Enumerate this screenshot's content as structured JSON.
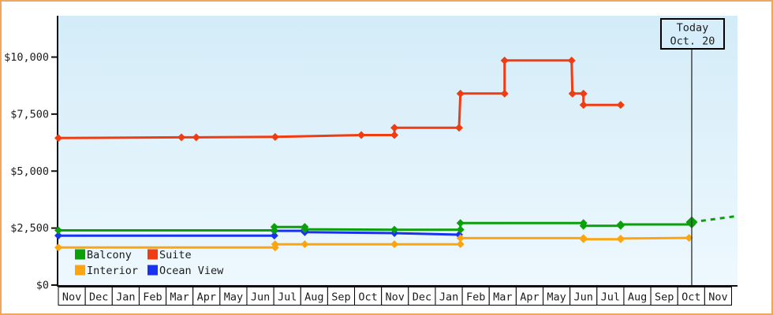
{
  "window": {
    "background": "#ffffff",
    "frame_color": "#eda75f"
  },
  "chart_data": {
    "type": "line",
    "title": "",
    "xlabel": "",
    "ylabel": "",
    "grid": false,
    "legend_position": "bottom-left-inside",
    "axis_ranges": {
      "y_usd": [
        0,
        10500
      ],
      "x_months": 25.2
    },
    "y_axis": {
      "ticks": [
        {
          "label": "$0",
          "value": 0
        },
        {
          "label": "$2,500",
          "value": 2500
        },
        {
          "label": "$5,000",
          "value": 5000
        },
        {
          "label": "$7,500",
          "value": 7500
        },
        {
          "label": "$10,000",
          "value": 10000
        }
      ]
    },
    "x_axis": {
      "month_labels": [
        "Nov",
        "Dec",
        "Jan",
        "Feb",
        "Mar",
        "Apr",
        "May",
        "Jun",
        "Jul",
        "Aug",
        "Sep",
        "Oct",
        "Nov",
        "Dec",
        "Jan",
        "Feb",
        "Mar",
        "Apr",
        "May",
        "Jun",
        "Jul",
        "Aug",
        "Sep",
        "Oct",
        "Nov"
      ]
    },
    "today_marker": {
      "line1": "Today",
      "line2": "Oct. 20",
      "month_position": 23.52,
      "box_fill": "#d6eefa",
      "line_color": "#3a3a3a"
    },
    "legend": [
      "Balcony",
      "Suite",
      "Interior",
      "Ocean View"
    ],
    "series": [
      {
        "name": "Balcony",
        "color": "#0aa00a",
        "end_big": true,
        "points": [
          [
            0,
            2400
          ],
          [
            8.02,
            2400
          ],
          [
            8.02,
            2550
          ],
          [
            9.15,
            2550
          ],
          [
            9.15,
            2450
          ],
          [
            12.48,
            2430
          ],
          [
            14.93,
            2430
          ],
          [
            14.93,
            2720
          ],
          [
            19.5,
            2720
          ],
          [
            19.5,
            2600
          ],
          [
            20.88,
            2600
          ],
          [
            20.88,
            2660
          ],
          [
            23.52,
            2660
          ],
          [
            23.52,
            2760
          ]
        ],
        "projection": [
          [
            23.52,
            2760
          ],
          [
            25.15,
            3020
          ]
        ]
      },
      {
        "name": "Suite",
        "color": "#f03c12",
        "end_big": false,
        "points": [
          [
            0,
            6450
          ],
          [
            4.57,
            6480
          ],
          [
            5.12,
            6480
          ],
          [
            8.05,
            6500
          ],
          [
            11.25,
            6580
          ],
          [
            12.48,
            6580
          ],
          [
            12.48,
            6900
          ],
          [
            14.88,
            6900
          ],
          [
            14.93,
            8400
          ],
          [
            16.57,
            8400
          ],
          [
            16.57,
            9850
          ],
          [
            19.06,
            9850
          ],
          [
            19.09,
            8400
          ],
          [
            19.5,
            8400
          ],
          [
            19.5,
            7900
          ],
          [
            20.88,
            7900
          ]
        ],
        "projection": null
      },
      {
        "name": "Interior",
        "color": "#fda50f",
        "end_big": false,
        "points": [
          [
            0,
            1650
          ],
          [
            8.05,
            1650
          ],
          [
            8.05,
            1790
          ],
          [
            9.15,
            1790
          ],
          [
            12.48,
            1790
          ],
          [
            14.93,
            1790
          ],
          [
            14.93,
            2060
          ],
          [
            19.5,
            2060
          ],
          [
            19.5,
            2010
          ],
          [
            20.88,
            2010
          ],
          [
            20.88,
            2040
          ],
          [
            23.42,
            2070
          ]
        ],
        "projection": null
      },
      {
        "name": "Ocean View",
        "color": "#1733f0",
        "end_big": false,
        "points": [
          [
            0,
            2170
          ],
          [
            8.02,
            2170
          ],
          [
            8.02,
            2380
          ],
          [
            9.15,
            2380
          ],
          [
            9.15,
            2320
          ],
          [
            12.48,
            2280
          ],
          [
            14.88,
            2210
          ]
        ],
        "projection": null
      }
    ]
  }
}
